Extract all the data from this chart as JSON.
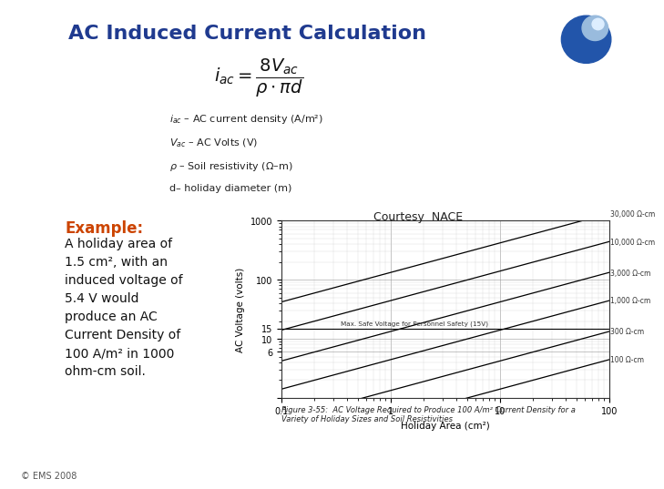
{
  "title": "AC Induced Current Calculation",
  "title_color": "#1F3A8F",
  "background_color": "#FFFFFF",
  "left_bar_colors": [
    "#808080",
    "#4472C4",
    "#1F3A8F"
  ],
  "formula_legend": [
    "$i_{ac}$ – AC current density (A/m²)",
    "$V_{ac}$ – AC Volts (V)",
    "$\\rho$ – Soil resistivity (Ω–m)",
    "d– holiday diameter (m)"
  ],
  "courtesy_text": "Courtesy  NACE",
  "example_label": "Example:",
  "example_color": "#CC4400",
  "example_text": "A holiday area of\n1.5 cm², with an\ninduced voltage of\n5.4 V would\nproduce an AC\nCurrent Density of\n100 A/m² in 1000\nohm-cm soil.",
  "figure_caption": "Figure 3-55:  AC Voltage Required to Produce 100 A/m² Current Density for a\nVariety of Holiday Sizes and Soil Resistivities",
  "copyright_text": "© EMS 2008",
  "chart": {
    "xlabel": "Holiday Area (cm²)",
    "ylabel": "AC Voltage (volts)",
    "safe_voltage_line": 15,
    "safe_voltage_label": "Max. Safe Voltage for Personnel Safety (15V)",
    "curves": [
      {
        "label": "30,000 Ω-cm",
        "resistivity": 30000
      },
      {
        "label": "10,000 Ω-cm",
        "resistivity": 10000
      },
      {
        "label": "3,000 Ω-cm",
        "resistivity": 3000
      },
      {
        "label": "1,000 Ω-cm",
        "resistivity": 1000
      },
      {
        "label": "300 Ω-cm",
        "resistivity": 300
      },
      {
        "label": "100 Ω-cm",
        "resistivity": 100
      }
    ]
  }
}
